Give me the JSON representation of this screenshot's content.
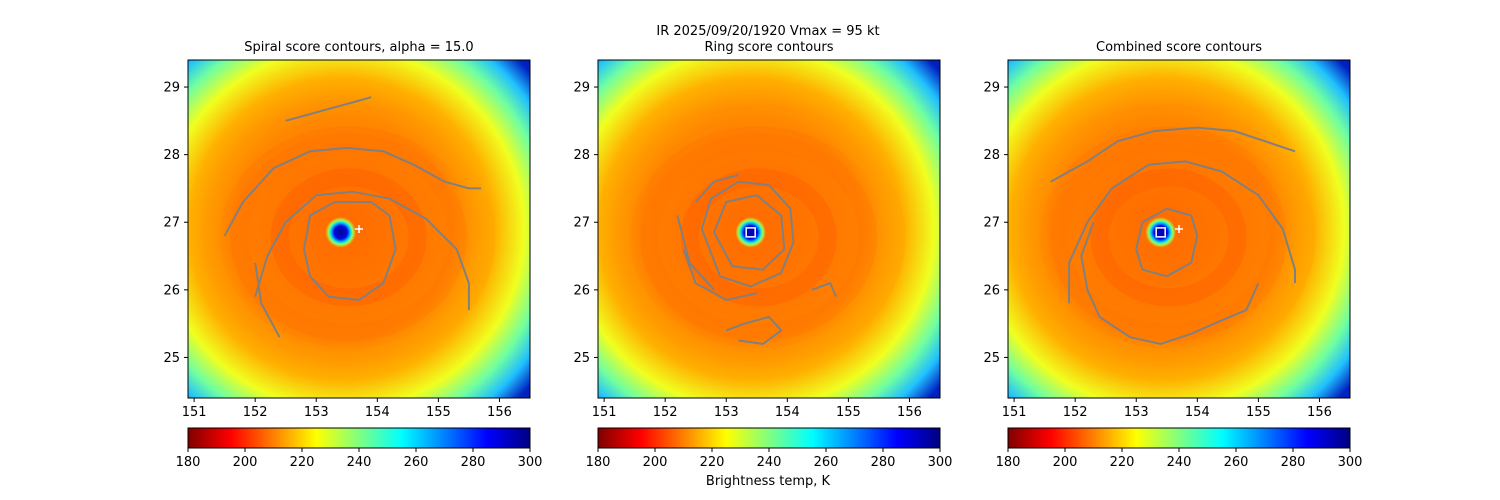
{
  "figure": {
    "suptitle_line1": "IR  2025/09/20/1920    Vmax = 95 kt",
    "colorbar_label": "Brightness temp, K"
  },
  "palette": {
    "jet": [
      "#800000",
      "#ff0000",
      "#ff8000",
      "#ffff00",
      "#80ff80",
      "#00ffff",
      "#0080ff",
      "#0000ff",
      "#000080"
    ],
    "contour": "#808080",
    "marker": "#ffffff"
  },
  "chart_data": [
    {
      "type": "heatmap",
      "title": "Spiral score contours, alpha = 15.0",
      "xlim": [
        150.9,
        156.5
      ],
      "ylim": [
        24.4,
        29.4
      ],
      "xticks": [
        "151",
        "152",
        "153",
        "154",
        "155",
        "156"
      ],
      "yticks": [
        "25",
        "26",
        "27",
        "28",
        "29"
      ],
      "eye_center": [
        153.4,
        26.85
      ],
      "best_center_plus": [
        153.7,
        26.9
      ],
      "colorbar": {
        "range": [
          180,
          300
        ],
        "ticks": [
          "180",
          "200",
          "220",
          "240",
          "260",
          "280",
          "300"
        ]
      },
      "contours": [
        [
          [
            152.5,
            28.5
          ],
          [
            152.9,
            28.6
          ],
          [
            153.3,
            28.7
          ],
          [
            153.7,
            28.8
          ],
          [
            153.9,
            28.85
          ]
        ],
        [
          [
            151.5,
            26.8
          ],
          [
            151.8,
            27.3
          ],
          [
            152.3,
            27.8
          ],
          [
            152.9,
            28.05
          ],
          [
            153.5,
            28.1
          ],
          [
            154.1,
            28.05
          ],
          [
            154.6,
            27.85
          ],
          [
            155.1,
            27.6
          ],
          [
            155.5,
            27.5
          ],
          [
            155.7,
            27.5
          ]
        ],
        [
          [
            152.0,
            25.9
          ],
          [
            152.2,
            26.5
          ],
          [
            152.5,
            27.0
          ],
          [
            153.0,
            27.4
          ],
          [
            153.6,
            27.45
          ],
          [
            154.2,
            27.35
          ],
          [
            154.8,
            27.05
          ],
          [
            155.3,
            26.6
          ],
          [
            155.5,
            26.1
          ],
          [
            155.5,
            25.7
          ]
        ],
        [
          [
            152.4,
            25.3
          ],
          [
            152.1,
            25.8
          ],
          [
            152.0,
            26.4
          ]
        ],
        [
          [
            152.8,
            26.6
          ],
          [
            152.9,
            26.2
          ],
          [
            153.2,
            25.9
          ],
          [
            153.7,
            25.85
          ],
          [
            154.1,
            26.1
          ],
          [
            154.3,
            26.6
          ],
          [
            154.2,
            27.1
          ],
          [
            153.9,
            27.3
          ],
          [
            153.3,
            27.3
          ],
          [
            152.9,
            27.1
          ],
          [
            152.8,
            26.6
          ]
        ]
      ]
    },
    {
      "type": "heatmap",
      "title": "Ring score contours",
      "xlim": [
        150.9,
        156.5
      ],
      "ylim": [
        24.4,
        29.4
      ],
      "xticks": [
        "151",
        "152",
        "153",
        "154",
        "155",
        "156"
      ],
      "yticks": [
        "25",
        "26",
        "27",
        "28",
        "29"
      ],
      "eye_center": [
        153.4,
        26.85
      ],
      "best_center_square": [
        153.4,
        26.85
      ],
      "colorbar": {
        "range": [
          180,
          300
        ],
        "ticks": [
          "180",
          "200",
          "220",
          "240",
          "260",
          "280",
          "300"
        ]
      },
      "contours": [
        [
          [
            152.6,
            26.9
          ],
          [
            152.75,
            27.35
          ],
          [
            153.2,
            27.6
          ],
          [
            153.7,
            27.55
          ],
          [
            154.05,
            27.2
          ],
          [
            154.1,
            26.7
          ],
          [
            153.9,
            26.25
          ],
          [
            153.4,
            26.05
          ],
          [
            152.9,
            26.2
          ],
          [
            152.6,
            26.9
          ]
        ],
        [
          [
            152.8,
            26.85
          ],
          [
            153.0,
            27.3
          ],
          [
            153.5,
            27.4
          ],
          [
            153.9,
            27.1
          ],
          [
            153.95,
            26.6
          ],
          [
            153.6,
            26.3
          ],
          [
            153.1,
            26.35
          ],
          [
            152.8,
            26.85
          ]
        ],
        [
          [
            152.3,
            26.6
          ],
          [
            152.5,
            26.1
          ],
          [
            153.0,
            25.85
          ],
          [
            153.5,
            25.95
          ]
        ],
        [
          [
            152.2,
            27.1
          ],
          [
            152.4,
            26.4
          ],
          [
            152.8,
            26.0
          ]
        ],
        [
          [
            153.0,
            25.4
          ],
          [
            153.3,
            25.5
          ],
          [
            153.7,
            25.6
          ],
          [
            153.9,
            25.4
          ],
          [
            153.6,
            25.2
          ],
          [
            153.2,
            25.25
          ]
        ],
        [
          [
            154.4,
            26.0
          ],
          [
            154.7,
            26.1
          ],
          [
            154.8,
            25.9
          ]
        ],
        [
          [
            152.5,
            27.3
          ],
          [
            152.8,
            27.6
          ],
          [
            153.2,
            27.7
          ]
        ]
      ]
    },
    {
      "type": "heatmap",
      "title": "Combined score contours",
      "xlim": [
        150.9,
        156.5
      ],
      "ylim": [
        24.4,
        29.4
      ],
      "xticks": [
        "151",
        "152",
        "153",
        "154",
        "155",
        "156"
      ],
      "yticks": [
        "25",
        "26",
        "27",
        "28",
        "29"
      ],
      "eye_center": [
        153.4,
        26.85
      ],
      "best_center_square": [
        153.4,
        26.85
      ],
      "best_center_plus": [
        153.7,
        26.9
      ],
      "colorbar": {
        "range": [
          180,
          300
        ],
        "ticks": [
          "180",
          "200",
          "220",
          "240",
          "260",
          "280",
          "300"
        ]
      },
      "contours": [
        [
          [
            151.6,
            27.6
          ],
          [
            152.2,
            27.9
          ],
          [
            152.7,
            28.2
          ],
          [
            153.3,
            28.35
          ],
          [
            154.0,
            28.4
          ],
          [
            154.6,
            28.35
          ],
          [
            155.1,
            28.2
          ],
          [
            155.6,
            28.05
          ]
        ],
        [
          [
            151.9,
            25.8
          ],
          [
            151.9,
            26.4
          ],
          [
            152.2,
            27.0
          ],
          [
            152.6,
            27.5
          ],
          [
            153.2,
            27.85
          ],
          [
            153.8,
            27.9
          ],
          [
            154.4,
            27.75
          ],
          [
            155.0,
            27.4
          ],
          [
            155.4,
            26.9
          ],
          [
            155.6,
            26.3
          ],
          [
            155.6,
            26.1
          ]
        ],
        [
          [
            152.4,
            25.6
          ],
          [
            152.9,
            25.3
          ],
          [
            153.4,
            25.2
          ],
          [
            153.9,
            25.35
          ],
          [
            154.4,
            25.55
          ],
          [
            154.8,
            25.7
          ],
          [
            155.0,
            26.1
          ]
        ],
        [
          [
            152.4,
            25.6
          ],
          [
            152.2,
            26.0
          ],
          [
            152.1,
            26.5
          ],
          [
            152.3,
            27.0
          ]
        ],
        [
          [
            153.0,
            26.6
          ],
          [
            153.1,
            26.3
          ],
          [
            153.5,
            26.2
          ],
          [
            153.9,
            26.4
          ],
          [
            154.0,
            26.8
          ],
          [
            153.9,
            27.1
          ],
          [
            153.5,
            27.2
          ],
          [
            153.1,
            27.0
          ],
          [
            153.0,
            26.6
          ]
        ]
      ]
    }
  ]
}
